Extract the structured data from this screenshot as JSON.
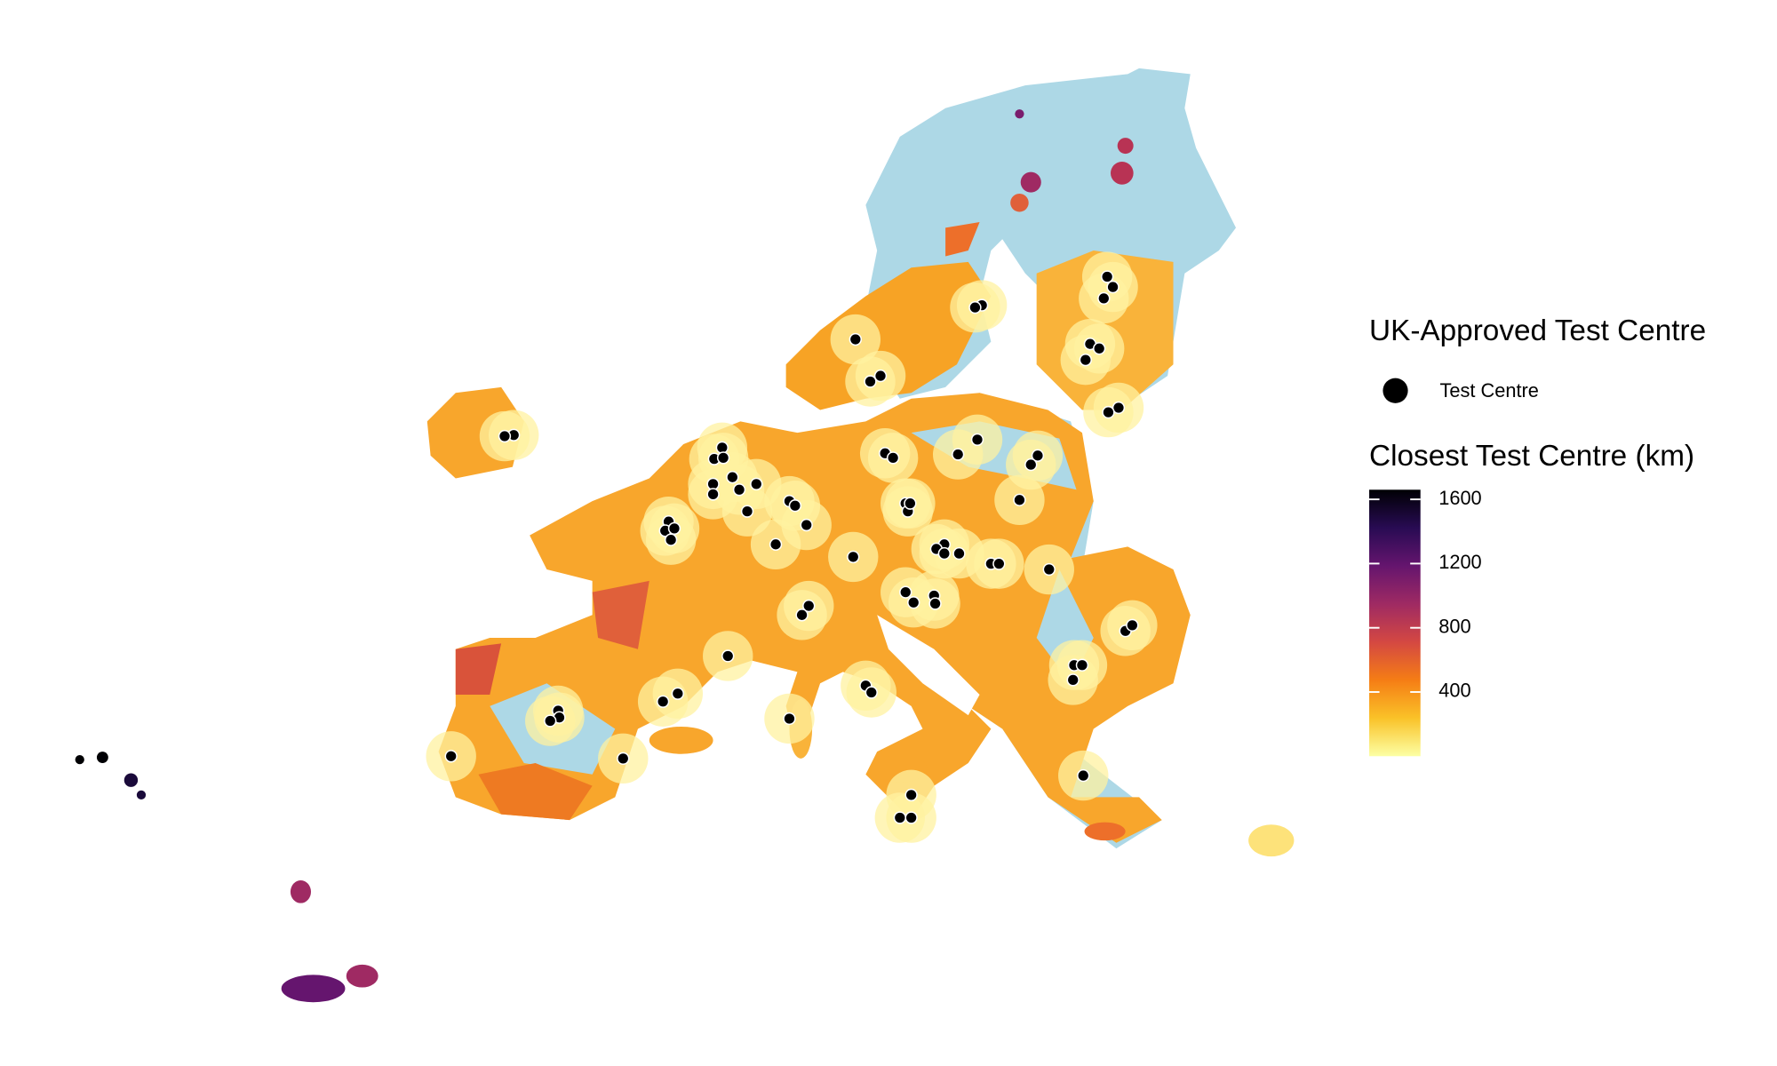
{
  "legend": {
    "points_title": "UK-Approved Test Centre",
    "points_label": "Test Centre",
    "colorbar": {
      "title": "Closest Test Centre (km)",
      "lim": [
        0,
        1660
      ],
      "ticks": [
        400,
        800,
        1200,
        1600
      ],
      "colors": [
        "#fcffa4",
        "#fac228",
        "#f57d15",
        "#d44842",
        "#9f2a63",
        "#65156e",
        "#280b53",
        "#000004"
      ]
    }
  }
}
